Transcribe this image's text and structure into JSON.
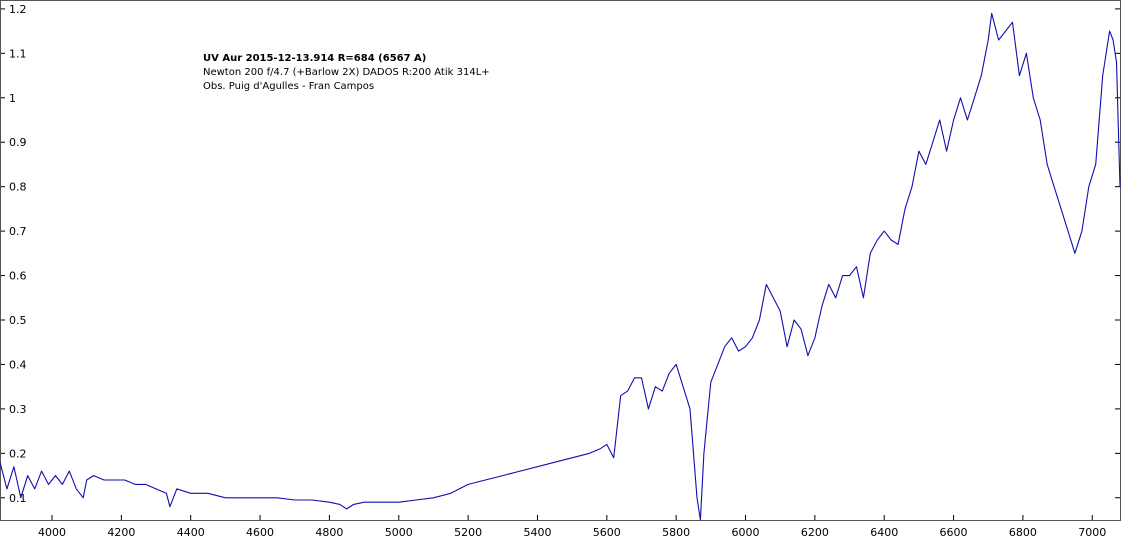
{
  "chart_data": {
    "type": "line",
    "title": "UV Aur 2015-12-13.914  R=684 (6567 A)",
    "subtitle_lines": [
      "Newton 200 f/4.7 (+Barlow 2X)  DADOS R:200 Atik 314L+",
      "Obs. Puig d'Agulles - Fran Campos"
    ],
    "xlabel": "",
    "ylabel": "",
    "xlim": [
      3850,
      7080
    ],
    "ylim": [
      0.05,
      1.22
    ],
    "xticks": [
      4000,
      4200,
      4400,
      4600,
      4800,
      5000,
      5200,
      5400,
      5600,
      5800,
      6000,
      6200,
      6400,
      6600,
      6800,
      7000
    ],
    "yticks": [
      0.1,
      0.2,
      0.3,
      0.4,
      0.5,
      0.6,
      0.7,
      0.8,
      0.9,
      1,
      1.1,
      1.2
    ],
    "grid": false,
    "line_color": "#1010b0",
    "series": [
      {
        "x": [
          3850,
          3870,
          3890,
          3910,
          3930,
          3950,
          3970,
          3990,
          4010,
          4030,
          4050,
          4070,
          4090,
          4100,
          4120,
          4150,
          4180,
          4210,
          4240,
          4270,
          4300,
          4330,
          4340,
          4360,
          4400,
          4450,
          4500,
          4550,
          4600,
          4650,
          4700,
          4750,
          4800,
          4830,
          4850,
          4870,
          4900,
          4950,
          5000,
          5050,
          5100,
          5150,
          5200,
          5250,
          5300,
          5350,
          5400,
          5450,
          5500,
          5550,
          5580,
          5600,
          5620,
          5640,
          5660,
          5680,
          5700,
          5720,
          5740,
          5760,
          5780,
          5800,
          5820,
          5840,
          5860,
          5870,
          5880,
          5900,
          5920,
          5940,
          5960,
          5980,
          6000,
          6020,
          6040,
          6060,
          6080,
          6100,
          6120,
          6140,
          6160,
          6180,
          6200,
          6220,
          6240,
          6260,
          6280,
          6300,
          6320,
          6340,
          6360,
          6380,
          6400,
          6420,
          6440,
          6460,
          6480,
          6500,
          6520,
          6540,
          6560,
          6580,
          6600,
          6620,
          6640,
          6660,
          6680,
          6700,
          6710,
          6730,
          6750,
          6770,
          6790,
          6810,
          6830,
          6850,
          6870,
          6890,
          6910,
          6930,
          6950,
          6970,
          6990,
          7010,
          7030,
          7050,
          7060,
          7070,
          7080
        ],
        "y": [
          0.18,
          0.12,
          0.17,
          0.1,
          0.15,
          0.12,
          0.16,
          0.13,
          0.15,
          0.13,
          0.16,
          0.12,
          0.1,
          0.14,
          0.15,
          0.14,
          0.14,
          0.14,
          0.13,
          0.13,
          0.12,
          0.11,
          0.08,
          0.12,
          0.11,
          0.11,
          0.1,
          0.1,
          0.1,
          0.1,
          0.095,
          0.095,
          0.09,
          0.085,
          0.075,
          0.085,
          0.09,
          0.09,
          0.09,
          0.095,
          0.1,
          0.11,
          0.13,
          0.14,
          0.15,
          0.16,
          0.17,
          0.18,
          0.19,
          0.2,
          0.21,
          0.22,
          0.19,
          0.33,
          0.34,
          0.37,
          0.37,
          0.3,
          0.35,
          0.34,
          0.38,
          0.4,
          0.35,
          0.3,
          0.1,
          0.05,
          0.2,
          0.36,
          0.4,
          0.44,
          0.46,
          0.43,
          0.44,
          0.46,
          0.5,
          0.58,
          0.55,
          0.52,
          0.44,
          0.5,
          0.48,
          0.42,
          0.46,
          0.53,
          0.58,
          0.55,
          0.6,
          0.6,
          0.62,
          0.55,
          0.65,
          0.68,
          0.7,
          0.68,
          0.67,
          0.75,
          0.8,
          0.88,
          0.85,
          0.9,
          0.95,
          0.88,
          0.95,
          1.0,
          0.95,
          1.0,
          1.05,
          1.13,
          1.19,
          1.13,
          1.15,
          1.17,
          1.05,
          1.1,
          1.0,
          0.95,
          0.85,
          0.8,
          0.75,
          0.7,
          0.65,
          0.7,
          0.8,
          0.85,
          1.05,
          1.15,
          1.13,
          1.08,
          0.8
        ]
      }
    ]
  }
}
